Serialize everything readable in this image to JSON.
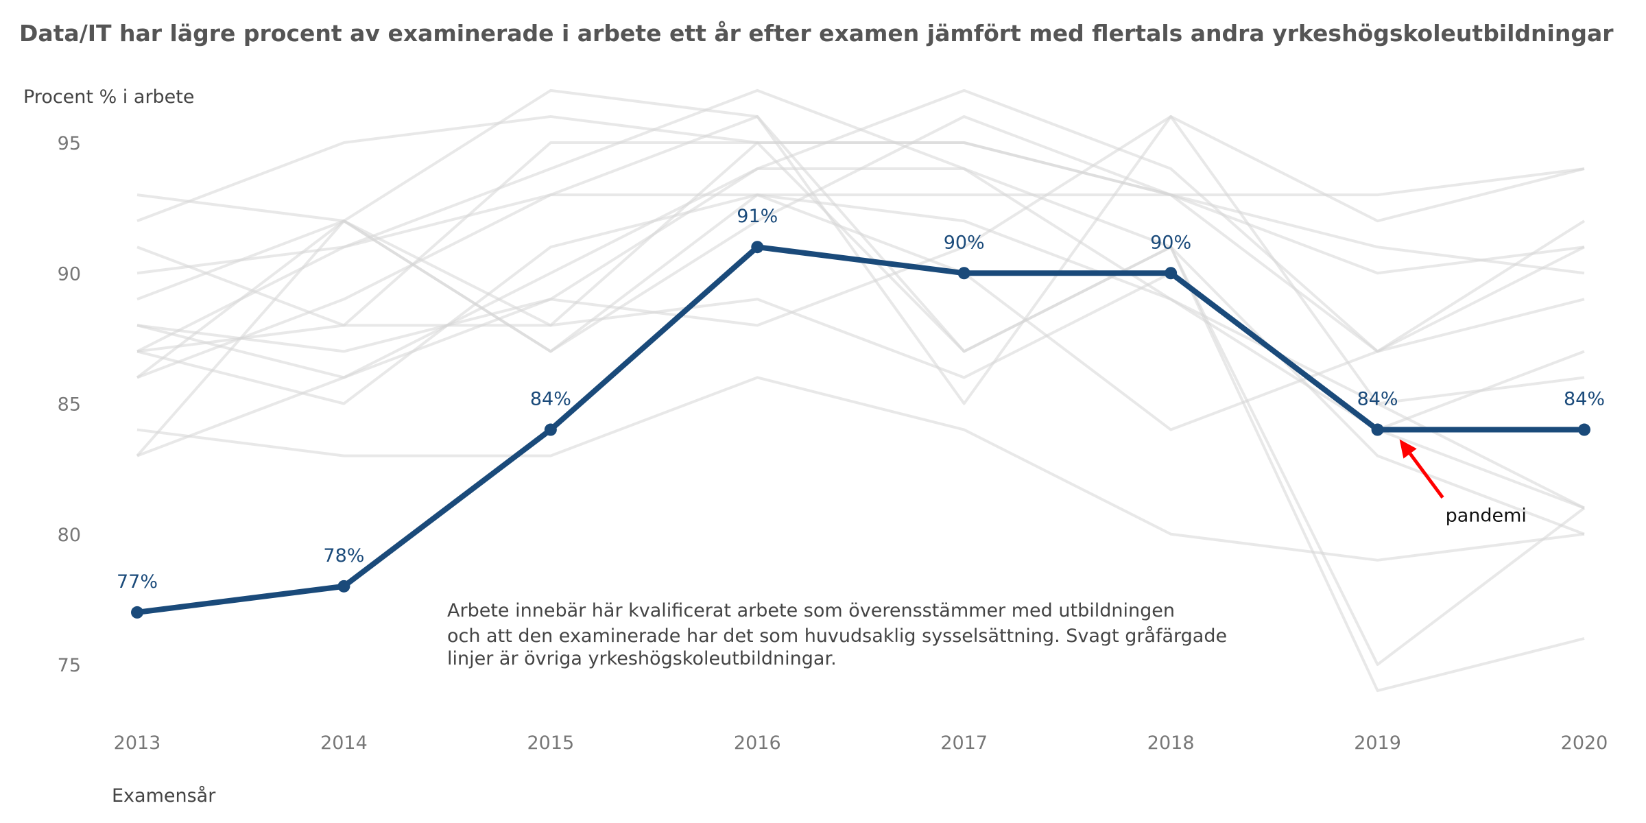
{
  "chart_data": {
    "type": "line",
    "title": "Data/IT har lägre procent av examinerade i arbete ett år efter examen jämfört med flertals andra yrkeshögskoleutbildningar",
    "ylabel": "Procent % i arbete",
    "xlabel": "Examensår",
    "x": [
      2013,
      2014,
      2015,
      2016,
      2017,
      2018,
      2019,
      2020
    ],
    "ylim": [
      73,
      97
    ],
    "yticks": [
      75,
      80,
      85,
      90,
      95
    ],
    "grid": false,
    "highlight_series": {
      "values": [
        77,
        78,
        84,
        91,
        90,
        90,
        84,
        84
      ],
      "labels": [
        "77%",
        "78%",
        "84%",
        "91%",
        "90%",
        "90%",
        "84%",
        "84%"
      ],
      "color": "#1a4a7a"
    },
    "background_series": {
      "color": "#d6d6d6",
      "series": [
        {
          "values": [
            93,
            92,
            87,
            93,
            93,
            93,
            93,
            94
          ]
        },
        {
          "values": [
            92,
            95,
            96,
            95,
            95,
            93,
            87,
            91
          ]
        },
        {
          "values": [
            91,
            88,
            88,
            89,
            86,
            90,
            84,
            81
          ]
        },
        {
          "values": [
            90,
            91,
            94,
            97,
            94,
            91,
            83,
            80
          ]
        },
        {
          "values": [
            89,
            92,
            88,
            95,
            87,
            91,
            74,
            76
          ]
        },
        {
          "values": [
            88,
            86,
            89,
            94,
            94,
            89,
            84,
            87
          ]
        },
        {
          "values": [
            87,
            88,
            95,
            95,
            95,
            93,
            91,
            90
          ]
        },
        {
          "values": [
            86,
            89,
            93,
            93,
            92,
            89,
            85,
            86
          ]
        },
        {
          "values": [
            84,
            83,
            83,
            86,
            84,
            80,
            79,
            80
          ]
        },
        {
          "values": [
            83,
            92,
            97,
            96,
            85,
            96,
            92,
            94
          ]
        },
        {
          "values": [
            86,
            92,
            87,
            92,
            96,
            93,
            90,
            91
          ]
        },
        {
          "values": [
            83,
            86,
            90,
            94,
            97,
            94,
            87,
            92
          ]
        },
        {
          "values": [
            87,
            85,
            91,
            93,
            90,
            84,
            87,
            89
          ]
        },
        {
          "values": [
            88,
            87,
            89,
            88,
            91,
            96,
            85,
            81
          ]
        },
        {
          "values": [
            87,
            91,
            93,
            96,
            87,
            91,
            75,
            81
          ]
        }
      ]
    },
    "note": [
      "Arbete innebär här kvalificerat arbete som överensstämmer med utbildningen",
      "och att den examinerade har det som huvudsaklig sysselsättning. Svagt gråfärgade",
      "linjer är övriga yrkeshögskoleutbildningar."
    ],
    "annotation": {
      "text": "pandemi",
      "x": 2019,
      "y": 84,
      "arrow_color": "#ff0000"
    }
  }
}
